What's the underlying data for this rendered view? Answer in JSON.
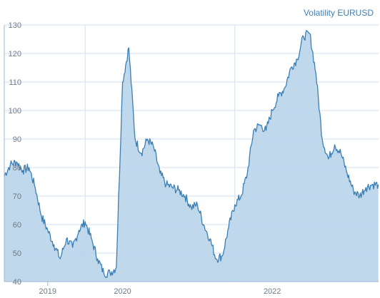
{
  "chart_data": {
    "type": "area",
    "title": "Volatility EURUSD",
    "xlabel": "",
    "ylabel": "",
    "ylim": [
      40,
      130
    ],
    "yticks": [
      40,
      50,
      60,
      70,
      80,
      90,
      100,
      110,
      120,
      130
    ],
    "xticks": [
      "2019",
      "2020",
      "2022"
    ],
    "grid": true,
    "colors": {
      "line": "#3c7fb5",
      "fill": "#b8d4ea",
      "grid": "#cfe1f1",
      "axis": "#9db9d4"
    },
    "series": [
      {
        "x": [
          "2018-06",
          "2018-07",
          "2018-08",
          "2018-09",
          "2018-10",
          "2018-11",
          "2018-12",
          "2019-01",
          "2019-02",
          "2019-03",
          "2019-04",
          "2019-05",
          "2019-06",
          "2019-07",
          "2019-08",
          "2019-09",
          "2019-10",
          "2019-11",
          "2019-12",
          "2020-01",
          "2020-02",
          "2020-03",
          "2020-04",
          "2020-05",
          "2020-06",
          "2020-07",
          "2020-08",
          "2020-09",
          "2020-10",
          "2020-11",
          "2020-12",
          "2021-01",
          "2021-02",
          "2021-03",
          "2021-04",
          "2021-05",
          "2021-06",
          "2021-07",
          "2021-08",
          "2021-09",
          "2021-10",
          "2021-11",
          "2021-12",
          "2022-01",
          "2022-02",
          "2022-03",
          "2022-04",
          "2022-05",
          "2022-06",
          "2022-07",
          "2022-08",
          "2022-09",
          "2022-10",
          "2022-11",
          "2022-12",
          "2023-01",
          "2023-02",
          "2023-03",
          "2023-04",
          "2023-05",
          "2023-06"
        ],
        "values": [
          77,
          81,
          82,
          79,
          80,
          73,
          63,
          58,
          53,
          48,
          55,
          52,
          58,
          61,
          55,
          48,
          43,
          43,
          45,
          110,
          122,
          90,
          85,
          90,
          87,
          78,
          74,
          73,
          72,
          70,
          66,
          67,
          60,
          55,
          48,
          49,
          59,
          67,
          70,
          78,
          93,
          95,
          93,
          100,
          105,
          108,
          115,
          118,
          126,
          127,
          113,
          90,
          83,
          88,
          85,
          78,
          72,
          70,
          73,
          74,
          74
        ]
      }
    ]
  }
}
